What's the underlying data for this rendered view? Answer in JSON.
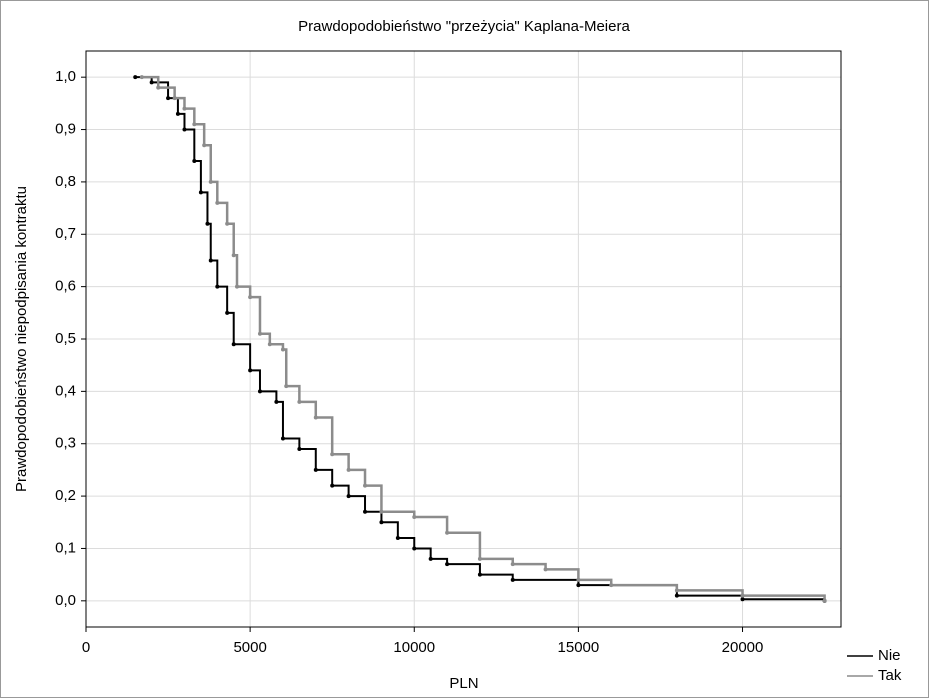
{
  "chart_data": {
    "type": "step",
    "title": "Prawdopodobieństwo \"przeżycia\" Kaplana-Meiera",
    "x_label": "PLN",
    "y_label": "Prawdopodobieństwo niepodpisania kontraktu",
    "xlim": [
      0,
      23000
    ],
    "ylim": [
      -0.05,
      1.05
    ],
    "xticks": [
      0,
      5000,
      10000,
      15000,
      20000
    ],
    "yticks": [
      {
        "value": 0,
        "label": "0,0"
      },
      {
        "value": 0.1,
        "label": "0,1"
      },
      {
        "value": 0.2,
        "label": "0,2"
      },
      {
        "value": 0.3,
        "label": "0,3"
      },
      {
        "value": 0.4,
        "label": "0,4"
      },
      {
        "value": 0.5,
        "label": "0,5"
      },
      {
        "value": 0.6,
        "label": "0,6"
      },
      {
        "value": 0.7,
        "label": "0,7"
      },
      {
        "value": 0.8,
        "label": "0,8"
      },
      {
        "value": 0.9,
        "label": "0,9"
      },
      {
        "value": 1,
        "label": "1,0"
      }
    ],
    "grid": true,
    "legend": "bottom-right",
    "series": [
      {
        "name": "Nie",
        "color": "#000000",
        "x": [
          1500,
          2000,
          2500,
          2800,
          3000,
          3300,
          3500,
          3700,
          3800,
          4000,
          4300,
          4500,
          5000,
          5300,
          5800,
          6000,
          6500,
          7000,
          7500,
          8000,
          8500,
          9000,
          9500,
          10000,
          10500,
          11000,
          12000,
          13000,
          15000,
          18000,
          20000,
          22500
        ],
        "values": [
          1.0,
          0.99,
          0.96,
          0.93,
          0.9,
          0.84,
          0.78,
          0.72,
          0.65,
          0.6,
          0.55,
          0.49,
          0.44,
          0.4,
          0.38,
          0.31,
          0.29,
          0.25,
          0.22,
          0.2,
          0.17,
          0.15,
          0.12,
          0.1,
          0.08,
          0.07,
          0.05,
          0.04,
          0.03,
          0.01,
          0.003,
          0.0
        ]
      },
      {
        "name": "Tak",
        "color": "#8c8c8c",
        "x": [
          1700,
          2200,
          2700,
          3000,
          3300,
          3600,
          3800,
          4000,
          4300,
          4500,
          4600,
          5000,
          5300,
          5600,
          6000,
          6100,
          6500,
          7000,
          7500,
          8000,
          8500,
          9000,
          10000,
          11000,
          12000,
          13000,
          14000,
          15000,
          16000,
          18000,
          20000,
          22500
        ],
        "values": [
          1.0,
          0.98,
          0.96,
          0.94,
          0.91,
          0.87,
          0.8,
          0.76,
          0.72,
          0.66,
          0.6,
          0.58,
          0.51,
          0.49,
          0.48,
          0.41,
          0.38,
          0.35,
          0.28,
          0.25,
          0.22,
          0.17,
          0.16,
          0.13,
          0.08,
          0.07,
          0.06,
          0.04,
          0.03,
          0.02,
          0.01,
          0.0
        ]
      }
    ]
  }
}
